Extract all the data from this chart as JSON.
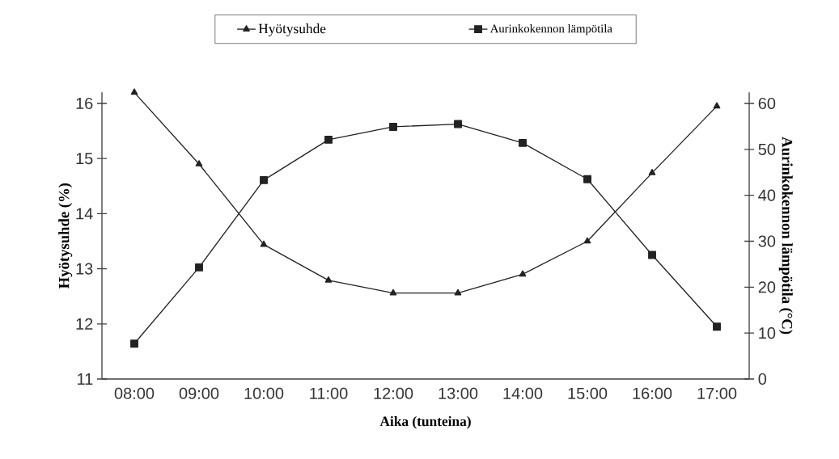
{
  "chart_data": {
    "type": "line",
    "xlabel": "Aika (tunteina)",
    "ylabel": "Hyötysuhde (%)",
    "y2label": "Aurinkokennon lämpötila (°C)",
    "categories": [
      "08:00",
      "09:00",
      "10:00",
      "11:00",
      "12:00",
      "13:00",
      "14:00",
      "15:00",
      "16:00",
      "17:00"
    ],
    "series": [
      {
        "name": "Hyötysuhde",
        "color": "#222222",
        "marker": "triangle",
        "values": [
          16.2,
          14.9,
          13.44,
          12.79,
          12.56,
          12.56,
          12.9,
          13.5,
          14.74,
          15.95
        ]
      },
      {
        "name": "Aurinkokennon lämpötila",
        "color": "#222222",
        "marker": "square",
        "axis": "y2",
        "values": [
          7.7,
          24.3,
          43.3,
          52.1,
          54.9,
          55.5,
          51.4,
          43.5,
          27.0,
          11.4
        ]
      }
    ],
    "ylim": [
      11,
      16.2
    ],
    "yticks": [
      11,
      12,
      13,
      14,
      15,
      16
    ],
    "y2lim": [
      0,
      62.4
    ],
    "y2ticks": [
      0,
      10,
      20,
      30,
      40,
      50,
      60
    ],
    "grid": false,
    "legend": "top",
    "line_style": "solid"
  }
}
